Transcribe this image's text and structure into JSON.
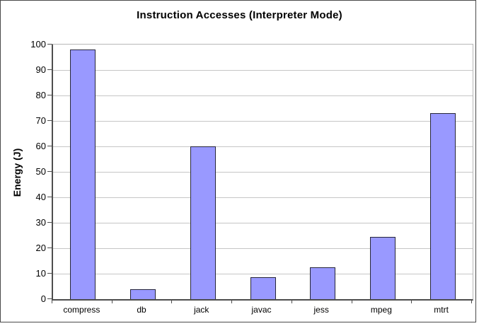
{
  "chart_data": {
    "type": "bar",
    "title": "Instruction Accesses (Interpreter Mode)",
    "ylabel": "Energy (J)",
    "xlabel": "",
    "categories": [
      "compress",
      "db",
      "jack",
      "javac",
      "jess",
      "mpeg",
      "mtrt"
    ],
    "values": [
      98,
      4,
      60,
      8.5,
      12.5,
      24.5,
      73
    ],
    "ylim": [
      0,
      100
    ],
    "ytick_step": 10,
    "ytick_labels": [
      "0",
      "10",
      "20",
      "30",
      "40",
      "50",
      "60",
      "70",
      "80",
      "90",
      "100"
    ],
    "grid": "horizontal-gridlines-on",
    "legend": "none",
    "bar_fill_color": "#9999ff",
    "bar_border_color": "#26263a",
    "gridline_color": "#c6c6c6",
    "axis_color": "#4d4d4d",
    "plot_border_color": "#b8b8b8",
    "background_color": "#ffffff"
  }
}
